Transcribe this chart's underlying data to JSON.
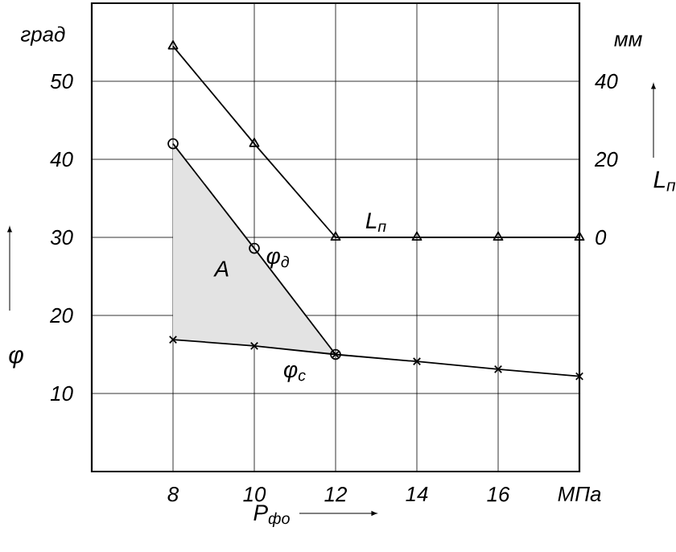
{
  "chart_data": {
    "type": "line",
    "xlabel": "P$_{фо}$",
    "ylabel": "φ",
    "y2label": "L$_{п}$",
    "x": [
      8,
      10,
      12,
      14,
      16,
      18
    ],
    "series": [
      {
        "name": "L$_{п}$",
        "color": "#000000",
        "axis": "y2",
        "marker": "triangle",
        "values": [
          49,
          24,
          0,
          0,
          0,
          0
        ]
      },
      {
        "name": "φ$_{д}$",
        "color": "#000000",
        "marker": "circle",
        "values": [
          42,
          28.6,
          15,
          null,
          null,
          null
        ],
        "lower": [
          16.9,
          16.1,
          15,
          null,
          null,
          null
        ],
        "upper": [
          42,
          28.6,
          15,
          null,
          null,
          null
        ]
      },
      {
        "name": "φ$_{с}$",
        "color": "#000000",
        "marker": "cross",
        "values": [
          16.9,
          16.1,
          15,
          14.1,
          13.1,
          12.2
        ]
      }
    ],
    "xlim": [
      6,
      18
    ],
    "xticks": [
      8,
      10,
      12,
      14,
      16,
      {
        "value": 18,
        "label": "МПа"
      }
    ],
    "ylim": [
      0,
      60
    ],
    "yticks": [
      10,
      20,
      30,
      40,
      50
    ],
    "y2lim": [
      -60,
      60
    ],
    "y2ticks": [
      0,
      20,
      40
    ],
    "grid": true,
    "legend": false,
    "annotations": [
      "град",
      "мм",
      "A"
    ]
  }
}
